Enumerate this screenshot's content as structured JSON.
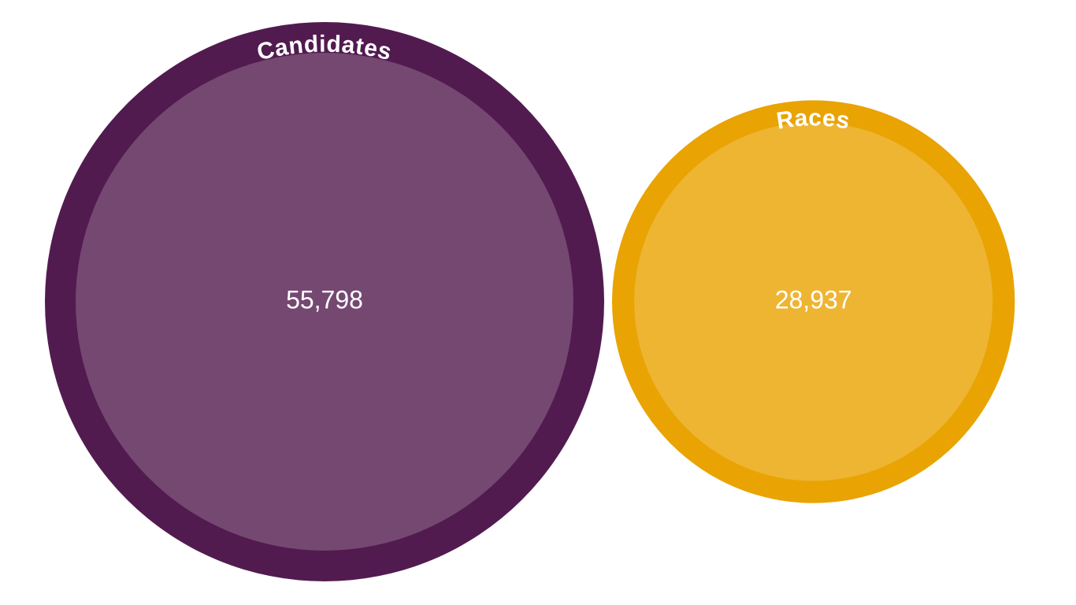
{
  "chart_data": {
    "type": "bubble",
    "series": [
      {
        "name": "Candidates",
        "value": 55798,
        "display_value": "55,798",
        "outer_color": "#521b50",
        "inner_color": "#754872"
      },
      {
        "name": "Races",
        "value": 28937,
        "display_value": "28,937",
        "outer_color": "#e9a303",
        "inner_color": "#eeb533"
      }
    ]
  }
}
